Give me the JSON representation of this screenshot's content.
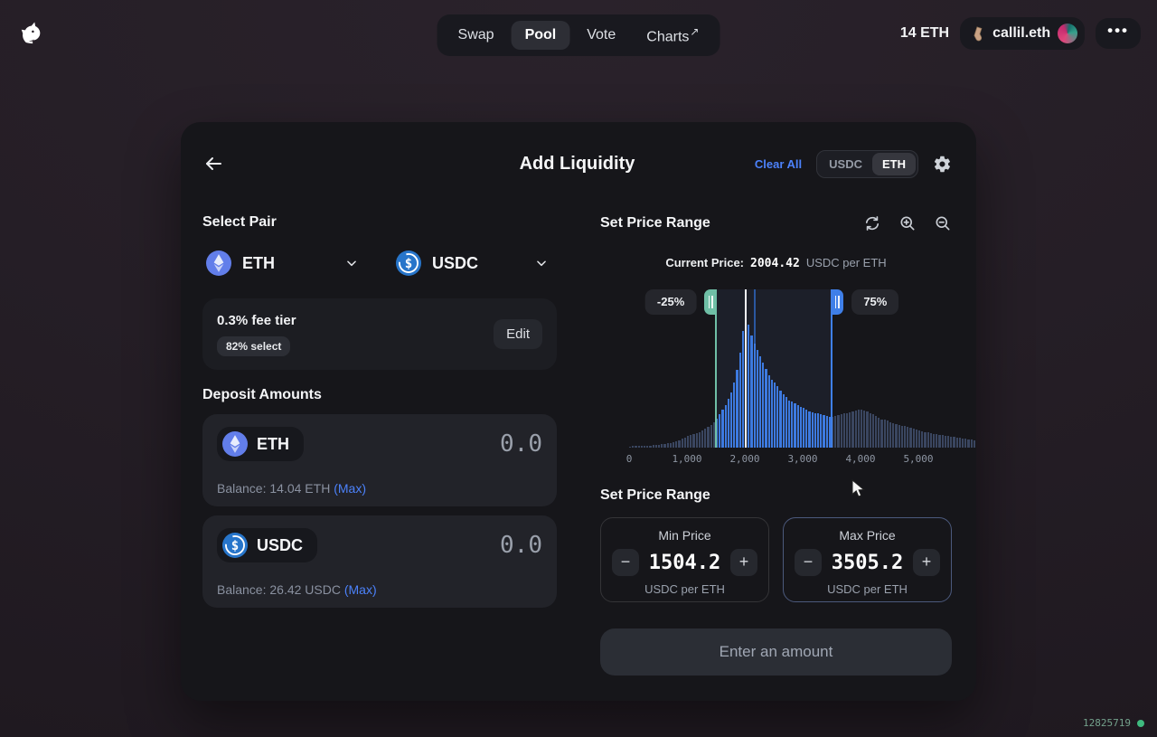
{
  "nav": {
    "items": [
      {
        "label": "Swap"
      },
      {
        "label": "Pool"
      },
      {
        "label": "Vote"
      },
      {
        "label": "Charts",
        "external_arrow": "↗"
      }
    ],
    "balance": "14 ETH",
    "account_name": "callil.eth",
    "menu_dots": "•••"
  },
  "header": {
    "title": "Add Liquidity",
    "clear_all": "Clear All",
    "toggle_options": [
      "USDC",
      "ETH"
    ],
    "toggle_selected": "ETH"
  },
  "select_pair": {
    "title": "Select Pair",
    "token_a": {
      "symbol": "ETH"
    },
    "token_b": {
      "symbol": "USDC"
    },
    "usdc_glyph": "$"
  },
  "fee_tier": {
    "label": "0.3% fee tier",
    "selection_badge": "82% select",
    "edit_label": "Edit"
  },
  "deposit": {
    "title": "Deposit Amounts",
    "rows": [
      {
        "symbol": "ETH",
        "value": "0.0",
        "balance_label": "Balance:",
        "balance_amount": "14.04 ETH",
        "max_label": "(Max)"
      },
      {
        "symbol": "USDC",
        "value": "0.0",
        "balance_label": "Balance:",
        "balance_amount": "26.42 USDC",
        "max_label": "(Max)"
      }
    ]
  },
  "price_range": {
    "title": "Set Price Range",
    "current_price_label": "Current Price:",
    "current_price_value": "2004.42",
    "current_price_unit": "USDC per ETH",
    "min_pct_label": "-25%",
    "max_pct_label": "75%"
  },
  "chart_data": {
    "type": "bar",
    "title": "Liquidity distribution histogram",
    "xlabel": "USDC per ETH",
    "xlim": [
      0,
      6000
    ],
    "x_ticks": [
      "0",
      "1,000",
      "2,000",
      "3,000",
      "4,000",
      "5,000"
    ],
    "x_tick_values": [
      0,
      1000,
      2000,
      3000,
      4000,
      5000
    ],
    "current_price": 2004.42,
    "min_price": 1504.2,
    "max_price": 3505.2,
    "spike_price": 2160,
    "bar_step": 50,
    "heights_pct": [
      0.8,
      0.9,
      1,
      1,
      1.1,
      1.2,
      1.3,
      1.4,
      1.5,
      1.7,
      1.9,
      2.1,
      2.4,
      2.7,
      3,
      3.4,
      3.9,
      4.5,
      5.5,
      6.5,
      7.5,
      8,
      8.5,
      9,
      10,
      11,
      12,
      13,
      14.5,
      16,
      18.5,
      21,
      24,
      27,
      31,
      35,
      41,
      49,
      60,
      74,
      82,
      78,
      71,
      66,
      62,
      58,
      54,
      50,
      46,
      43,
      41,
      39,
      36,
      34,
      32,
      30,
      29,
      28,
      27,
      26,
      25,
      24,
      23,
      22.5,
      22,
      21.5,
      21,
      20.5,
      20,
      19.5,
      19.5,
      20,
      20.5,
      21,
      21.5,
      22,
      22.5,
      23,
      23.5,
      24,
      24,
      23.5,
      23,
      22,
      21,
      20,
      19,
      18,
      17.5,
      17,
      16,
      15.5,
      15,
      14.5,
      14,
      13.5,
      13,
      12.5,
      12,
      11.5,
      11,
      10.5,
      10,
      9.5,
      9,
      8.8,
      8.5,
      8.2,
      8,
      7.7,
      7.4,
      7.1,
      6.8,
      6.5,
      6.2,
      6,
      5.7,
      5.4,
      5.1,
      4.8
    ],
    "colors": {
      "bar_in_range": "#3d7ae0",
      "bar_out_range": "#3a4660",
      "spike": "#2a57a0",
      "min_handle": "#6fbfa6",
      "max_handle": "#3f7fe8",
      "current_line": "#f4f6fa"
    }
  },
  "range_inputs": {
    "title": "Set Price Range",
    "min": {
      "label": "Min Price",
      "value": "1504.2",
      "unit": "USDC per ETH"
    },
    "max": {
      "label": "Max Price",
      "value": "3505.2",
      "unit": "USDC per ETH"
    },
    "minus": "−",
    "plus": "+"
  },
  "action_button": {
    "label": "Enter an amount"
  },
  "footer": {
    "block_number": "12825719"
  },
  "theme": {
    "accent_blue": "#4c82fb",
    "eth_icon": "#627eea",
    "usdc_icon": "#2775ca",
    "green_dot": "#3fba7f"
  }
}
